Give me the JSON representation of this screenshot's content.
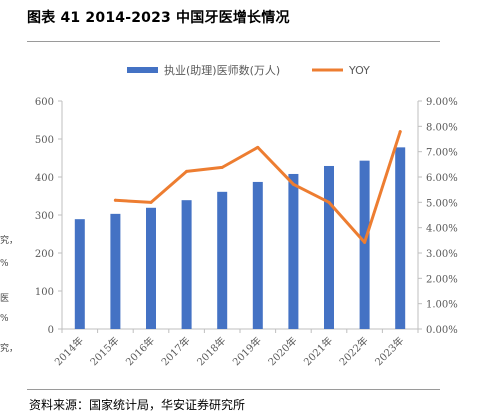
{
  "header": {
    "title": "图表 41 2014-2023 中国牙医增长情况"
  },
  "footer": {
    "source": "资料来源：国家统计局，华安证券研究所"
  },
  "page_fragments": [
    "究，",
    "%",
    "医",
    "%",
    "究，"
  ],
  "chart_data": {
    "type": "bar",
    "categories": [
      "2014年",
      "2015年",
      "2016年",
      "2017年",
      "2018年",
      "2019年",
      "2020年",
      "2021年",
      "2022年",
      "2023年"
    ],
    "series": [
      {
        "name": "执业(助理)医师数(万人)",
        "type": "bar",
        "axis": "left",
        "color": "#4472C4",
        "values": [
          289,
          303,
          319,
          339,
          361,
          387,
          408,
          429,
          443,
          478
        ]
      },
      {
        "name": "YOY",
        "type": "line",
        "axis": "right",
        "color": "#ED7D31",
        "values": [
          null,
          0.0508,
          0.05,
          0.0622,
          0.0638,
          0.0717,
          0.0571,
          0.05,
          0.0342,
          0.0779
        ]
      }
    ],
    "y_left": {
      "min": 0,
      "max": 600,
      "ticks": [
        "0",
        "100",
        "200",
        "300",
        "400",
        "500",
        "600"
      ]
    },
    "y_right": {
      "min": 0,
      "max": 0.09,
      "ticks": [
        "0.00%",
        "1.00%",
        "2.00%",
        "3.00%",
        "4.00%",
        "5.00%",
        "6.00%",
        "7.00%",
        "8.00%",
        "9.00%"
      ]
    },
    "legend_position": "top",
    "grid": false
  }
}
